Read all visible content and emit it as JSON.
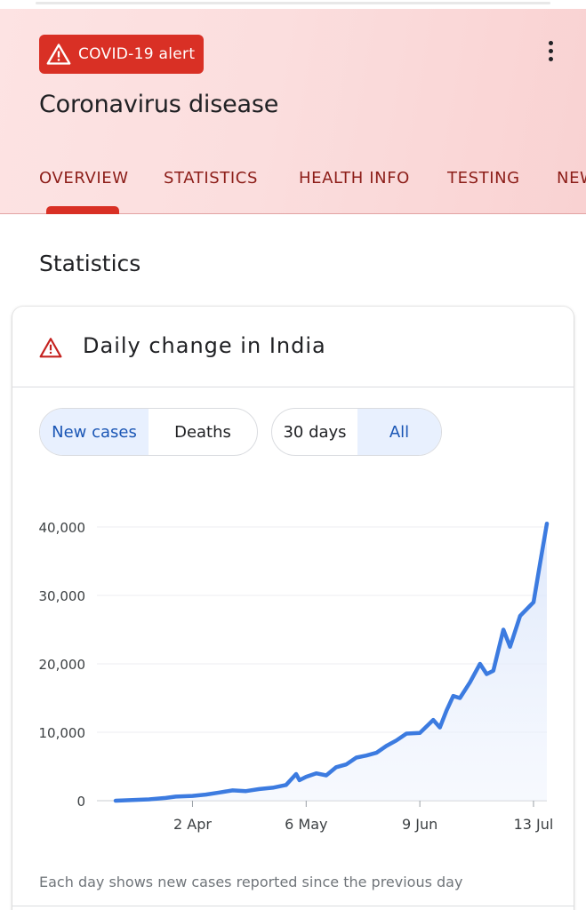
{
  "header": {
    "alert_label": "COVID-19 alert",
    "title": "Coronavirus disease",
    "tabs": [
      {
        "label": "OVERVIEW"
      },
      {
        "label": "STATISTICS"
      },
      {
        "label": "HEALTH INFO"
      },
      {
        "label": "TESTING"
      },
      {
        "label": "NEWS"
      }
    ],
    "active_tab": "OVERVIEW",
    "accent_color": "#d93025"
  },
  "section": {
    "title": "Statistics"
  },
  "card": {
    "title": "Daily change in India",
    "metric_toggle": {
      "options": [
        "New cases",
        "Deaths"
      ],
      "selected": "New cases"
    },
    "range_toggle": {
      "options": [
        "30 days",
        "All"
      ],
      "selected": "All"
    },
    "note": "Each day shows new cases reported since the previous day"
  },
  "chart_data": {
    "type": "area",
    "x_tick_labels": [
      "2 Apr",
      "6 May",
      "9 Jun",
      "13 Jul"
    ],
    "y_tick_labels": [
      "0",
      "10,000",
      "20,000",
      "30,000",
      "40,000"
    ],
    "ylim": [
      0,
      40000
    ],
    "grid": true,
    "line_color": "#3c7be0",
    "x": [
      "2020-03-10",
      "2020-03-15",
      "2020-03-20",
      "2020-03-25",
      "2020-03-28",
      "2020-04-02",
      "2020-04-06",
      "2020-04-10",
      "2020-04-14",
      "2020-04-18",
      "2020-04-22",
      "2020-04-26",
      "2020-04-30",
      "2020-05-03",
      "2020-05-04",
      "2020-05-06",
      "2020-05-09",
      "2020-05-12",
      "2020-05-15",
      "2020-05-18",
      "2020-05-21",
      "2020-05-24",
      "2020-05-27",
      "2020-05-30",
      "2020-06-02",
      "2020-06-05",
      "2020-06-09",
      "2020-06-13",
      "2020-06-15",
      "2020-06-17",
      "2020-06-19",
      "2020-06-21",
      "2020-06-24",
      "2020-06-27",
      "2020-06-29",
      "2020-07-01",
      "2020-07-04",
      "2020-07-06",
      "2020-07-09",
      "2020-07-12",
      "2020-07-13",
      "2020-07-15",
      "2020-07-17"
    ],
    "values": [
      0,
      100,
      200,
      400,
      600,
      700,
      900,
      1200,
      1500,
      1400,
      1700,
      1900,
      2300,
      3900,
      3000,
      3500,
      4000,
      3700,
      4900,
      5300,
      6300,
      6600,
      7000,
      8000,
      8800,
      9800,
      9900,
      11800,
      10700,
      13200,
      15300,
      15000,
      17300,
      20000,
      18500,
      19000,
      25000,
      22500,
      27000,
      28500,
      29000,
      34800,
      40500
    ]
  }
}
